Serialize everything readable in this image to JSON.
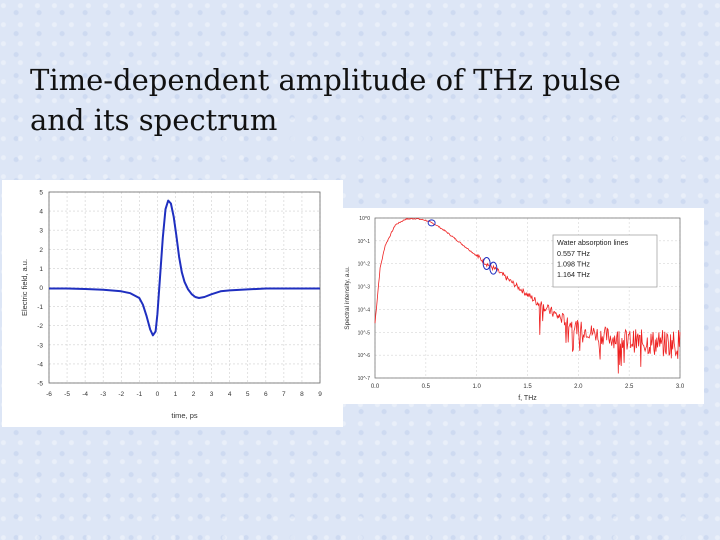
{
  "slide": {
    "title_line1": "Time-dependent amplitude of THz pulse",
    "title_line2": "and its spectrum"
  },
  "chart_data": [
    {
      "type": "line",
      "xlabel": "time, ps",
      "ylabel": "Electric field, a.u.",
      "xlim": [
        -6,
        9
      ],
      "ylim": [
        -5,
        5
      ],
      "xticks": [
        "-6",
        "-5",
        "-4",
        "-3",
        "-2",
        "-1",
        "0",
        "1",
        "2",
        "3",
        "4",
        "5",
        "6",
        "7",
        "8",
        "9"
      ],
      "yticks": [
        "5",
        "4",
        "3",
        "2",
        "1",
        "0",
        "-1",
        "-2",
        "-3",
        "-4",
        "-5"
      ],
      "grid": true,
      "color": "#1f2fc0",
      "x": [
        -6,
        -5,
        -4,
        -3,
        -2,
        -1.5,
        -1,
        -0.8,
        -0.6,
        -0.4,
        -0.25,
        -0.1,
        0,
        0.15,
        0.3,
        0.45,
        0.6,
        0.75,
        0.9,
        1.05,
        1.2,
        1.35,
        1.5,
        1.7,
        1.9,
        2.1,
        2.3,
        2.6,
        3,
        3.5,
        4,
        5,
        6,
        7,
        8,
        9
      ],
      "y": [
        -0.05,
        -0.05,
        -0.08,
        -0.12,
        -0.2,
        -0.3,
        -0.55,
        -0.9,
        -1.5,
        -2.2,
        -2.5,
        -2.3,
        -1.4,
        0.6,
        2.6,
        4.1,
        4.55,
        4.4,
        3.7,
        2.7,
        1.6,
        0.8,
        0.3,
        -0.1,
        -0.35,
        -0.5,
        -0.55,
        -0.5,
        -0.35,
        -0.2,
        -0.15,
        -0.1,
        -0.05,
        -0.05,
        -0.05,
        -0.05
      ]
    },
    {
      "type": "line",
      "xlabel": "f, THz",
      "ylabel": "Spectral intensity, a.u.",
      "xlim": [
        0.0,
        3.0
      ],
      "ylim": [
        -7,
        0
      ],
      "yscale": "log",
      "xticks": [
        "0.0",
        "0.5",
        "1.0",
        "1.5",
        "2.0",
        "2.5",
        "3.0"
      ],
      "yticks": [
        "10^0",
        "10^-1",
        "10^-2",
        "10^-3",
        "10^-4",
        "10^-5",
        "10^-6",
        "10^-7"
      ],
      "grid": true,
      "color": "#ee2020",
      "series_log10": {
        "x": [
          0.0,
          0.05,
          0.1,
          0.2,
          0.3,
          0.4,
          0.5,
          0.6,
          0.7,
          0.8,
          0.9,
          1.0,
          1.1,
          1.2,
          1.3,
          1.4,
          1.5,
          1.6,
          1.7,
          1.8,
          1.9,
          2.0,
          2.2,
          2.4,
          2.6,
          2.8,
          3.0
        ],
        "log10_y": [
          -4.6,
          -2.2,
          -1.2,
          -0.3,
          -0.05,
          -0.02,
          -0.1,
          -0.3,
          -0.6,
          -0.95,
          -1.3,
          -1.65,
          -2.0,
          -2.3,
          -2.65,
          -3.0,
          -3.35,
          -3.7,
          -4.0,
          -4.3,
          -4.55,
          -4.8,
          -5.1,
          -5.3,
          -5.4,
          -5.5,
          -5.5
        ]
      },
      "absorption_markers": [
        0.557,
        1.098,
        1.164
      ],
      "legend": {
        "heading": "Water absorption lines",
        "lines": [
          "0.557  THz",
          "1.098  THz",
          "1.164  THz"
        ],
        "placement": "top-right"
      }
    }
  ]
}
